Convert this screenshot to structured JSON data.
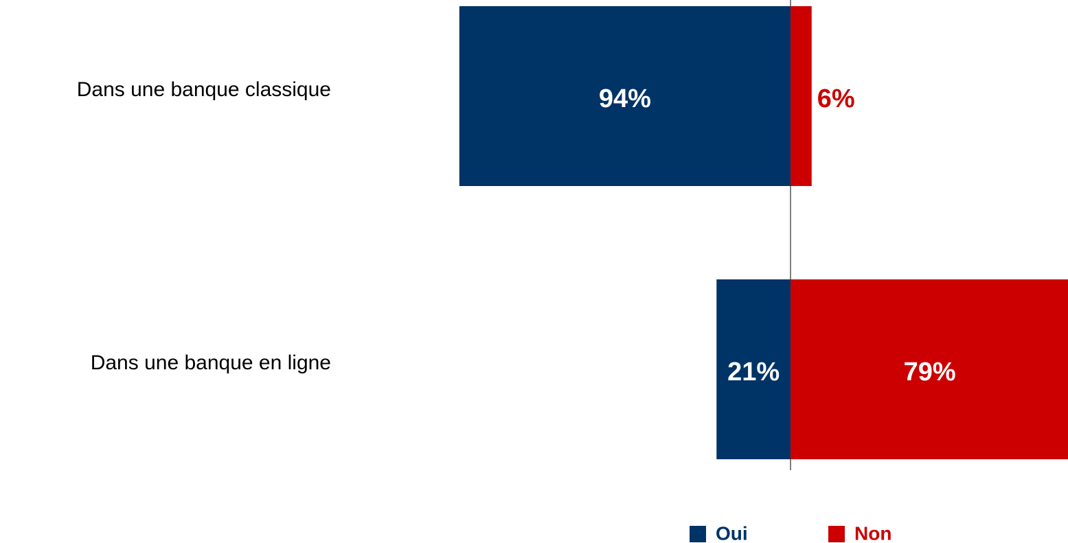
{
  "chart_data": {
    "type": "diverging_bar",
    "categories": [
      "Dans une banque classique",
      "Dans une banque en ligne"
    ],
    "series": [
      {
        "name": "Oui",
        "color": "#003366",
        "values": [
          94,
          21
        ],
        "value_labels": [
          "94%",
          "21%"
        ]
      },
      {
        "name": "Non",
        "color": "#cc0000",
        "values": [
          6,
          79
        ],
        "value_labels": [
          "6%",
          "79%"
        ]
      }
    ]
  }
}
